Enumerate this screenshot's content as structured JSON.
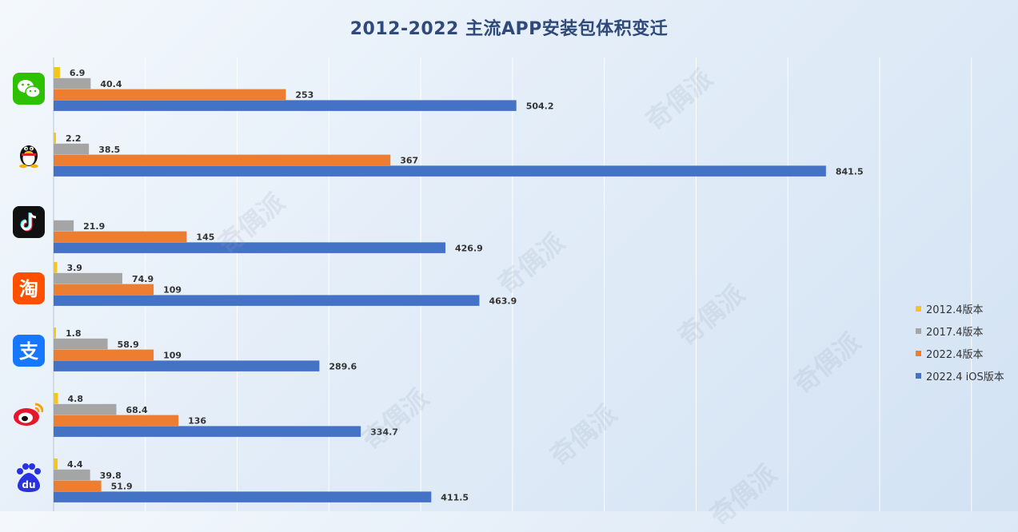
{
  "title": "2012-2022 主流APP安装包体积变迁",
  "watermark": "奇偶派",
  "apps": [
    {
      "icon": "wechat-icon"
    },
    {
      "icon": "qq-penguin-icon"
    },
    {
      "icon": "tiktok-icon"
    },
    {
      "icon": "taobao-icon"
    },
    {
      "icon": "alipay-icon"
    },
    {
      "icon": "weibo-icon"
    },
    {
      "icon": "baidu-icon"
    }
  ],
  "colors": {
    "2012.4版本": "#f5c518",
    "2017.4版本": "#a5a5a5",
    "2022.4版本": "#ed7d31",
    "2022.4 iOS版本": "#4472c4"
  },
  "chart_data": {
    "type": "bar",
    "orientation": "horizontal",
    "title": "2012-2022 主流APP安装包体积变迁",
    "categories": [
      "微信",
      "QQ",
      "抖音",
      "淘宝",
      "支付宝",
      "微博",
      "百度"
    ],
    "series": [
      {
        "name": "2012.4版本",
        "values": [
          6.9,
          2.2,
          null,
          3.9,
          1.8,
          4.8,
          4.4
        ]
      },
      {
        "name": "2017.4版本",
        "values": [
          40.4,
          38.5,
          21.9,
          74.9,
          58.9,
          68.4,
          39.8
        ]
      },
      {
        "name": "2022.4版本",
        "values": [
          253,
          367,
          145,
          109,
          109,
          136,
          51.9
        ]
      },
      {
        "name": "2022.4 iOS版本",
        "values": [
          504.2,
          841.5,
          426.9,
          463.9,
          289.6,
          334.7,
          411.5
        ]
      }
    ],
    "xlim": [
      0,
      900
    ],
    "grid": true,
    "legend": "right"
  }
}
